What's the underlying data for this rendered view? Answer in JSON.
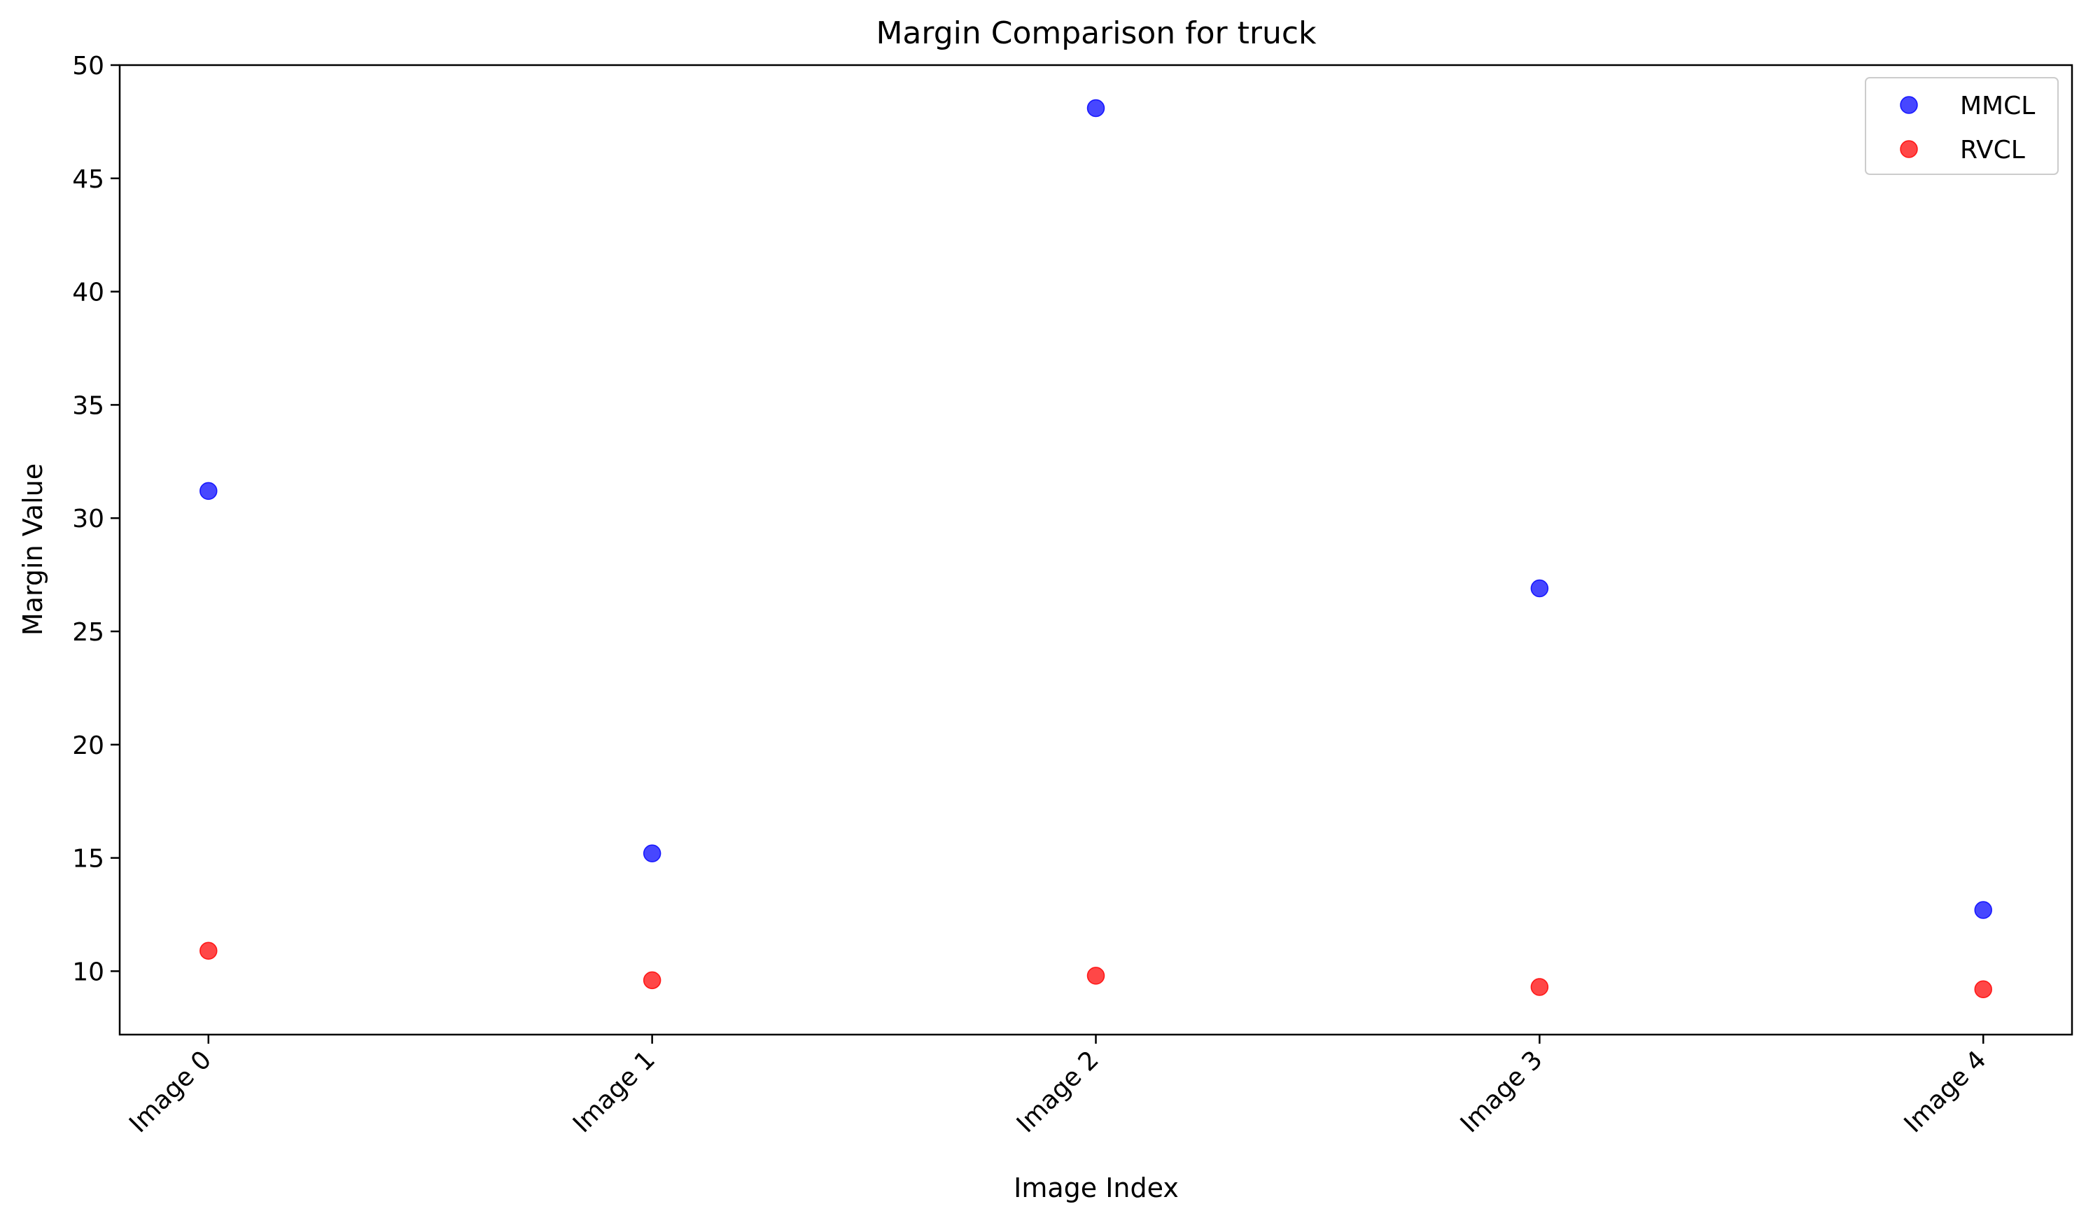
{
  "chart_data": {
    "type": "scatter",
    "title": "Margin Comparison for truck",
    "xlabel": "Image Index",
    "ylabel": "Margin Value",
    "categories": [
      "Image 0",
      "Image 1",
      "Image 2",
      "Image 3",
      "Image 4"
    ],
    "x": [
      0,
      1,
      2,
      3,
      4
    ],
    "ylim": [
      7.2,
      50
    ],
    "yticks": [
      10,
      15,
      20,
      25,
      30,
      35,
      40,
      45,
      50
    ],
    "grid": false,
    "legend_position": "top-right",
    "series": [
      {
        "name": "MMCL",
        "color": "#0000ff",
        "values": [
          31.2,
          15.2,
          48.1,
          26.9,
          12.7
        ]
      },
      {
        "name": "RVCL",
        "color": "#ff0000",
        "values": [
          10.9,
          9.6,
          9.8,
          9.3,
          9.2
        ]
      }
    ]
  }
}
